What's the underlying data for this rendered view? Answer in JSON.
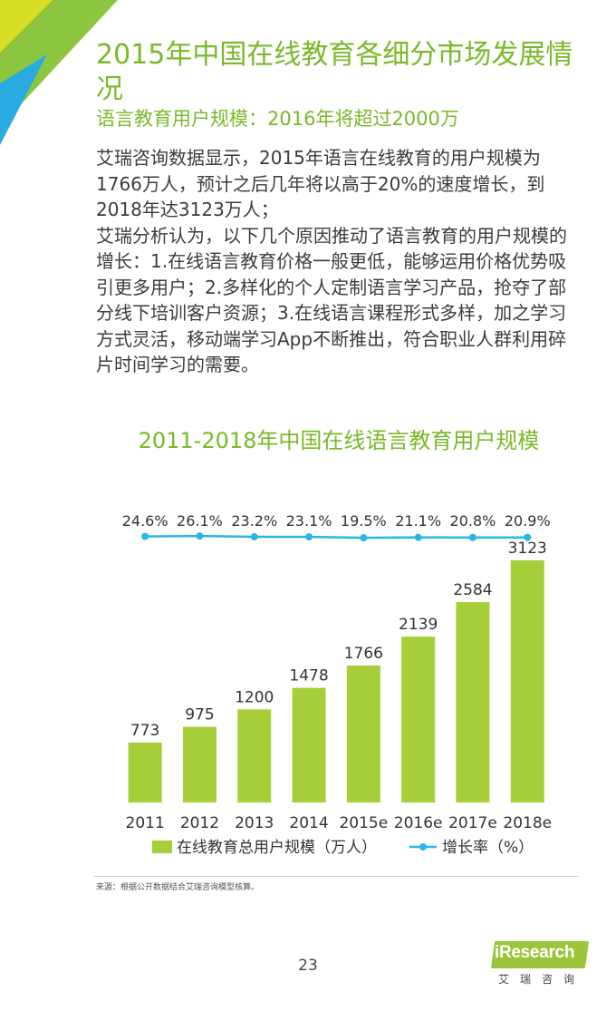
{
  "colors": {
    "accent_green": "#7ab929",
    "bar_green": "#a6ce39",
    "line_blue": "#29b6e6",
    "corner_green": "#8cc63f",
    "corner_yellow": "#d7df23",
    "corner_blue": "#29abe2"
  },
  "header": {
    "title": "2015年中国在线教育各细分市场发展情况",
    "subtitle": "语言教育用户规模：2016年将超过2000万"
  },
  "body": {
    "paragraphs": [
      "艾瑞咨询数据显示，2015年语言在线教育的用户规模为1766万人，预计之后几年将以高于20%的速度增长，到2018年达3123万人；",
      "艾瑞分析认为，以下几个原因推动了语言教育的用户规模的增长：1.在线语言教育价格一般更低，能够运用价格优势吸引更多用户；2.多样化的个人定制语言学习产品，抢夺了部分线下培训客户资源；3.在线语言课程形式多样，加之学习方式灵活，移动端学习App不断推出，符合职业人群利用碎片时间学习的需要。"
    ]
  },
  "chart_data": {
    "type": "bar",
    "title": "2011-2018年中国在线语言教育用户规模",
    "categories": [
      "2011",
      "2012",
      "2013",
      "2014",
      "2015e",
      "2016e",
      "2017e",
      "2018e"
    ],
    "series": [
      {
        "name": "在线教育总用户规模（万人）",
        "type": "bar",
        "values": [
          773,
          975,
          1200,
          1478,
          1766,
          2139,
          2584,
          3123
        ],
        "labels": [
          "773",
          "975",
          "1200",
          "1478",
          "1766",
          "2139",
          "2584",
          "3123"
        ]
      },
      {
        "name": "增长率（%）",
        "type": "line",
        "values": [
          24.6,
          26.1,
          23.2,
          23.1,
          19.5,
          21.1,
          20.8,
          20.9
        ],
        "labels": [
          "24.6%",
          "26.1%",
          "23.2%",
          "23.1%",
          "19.5%",
          "21.1%",
          "20.8%",
          "20.9%"
        ]
      }
    ],
    "legend_position": "bottom",
    "grid": false
  },
  "footer": {
    "source": "来源：根据公开数据结合艾瑞咨询模型核算。",
    "page_number": "23",
    "logo_text": "iResearch",
    "logo_cn": "艾瑞咨询"
  }
}
